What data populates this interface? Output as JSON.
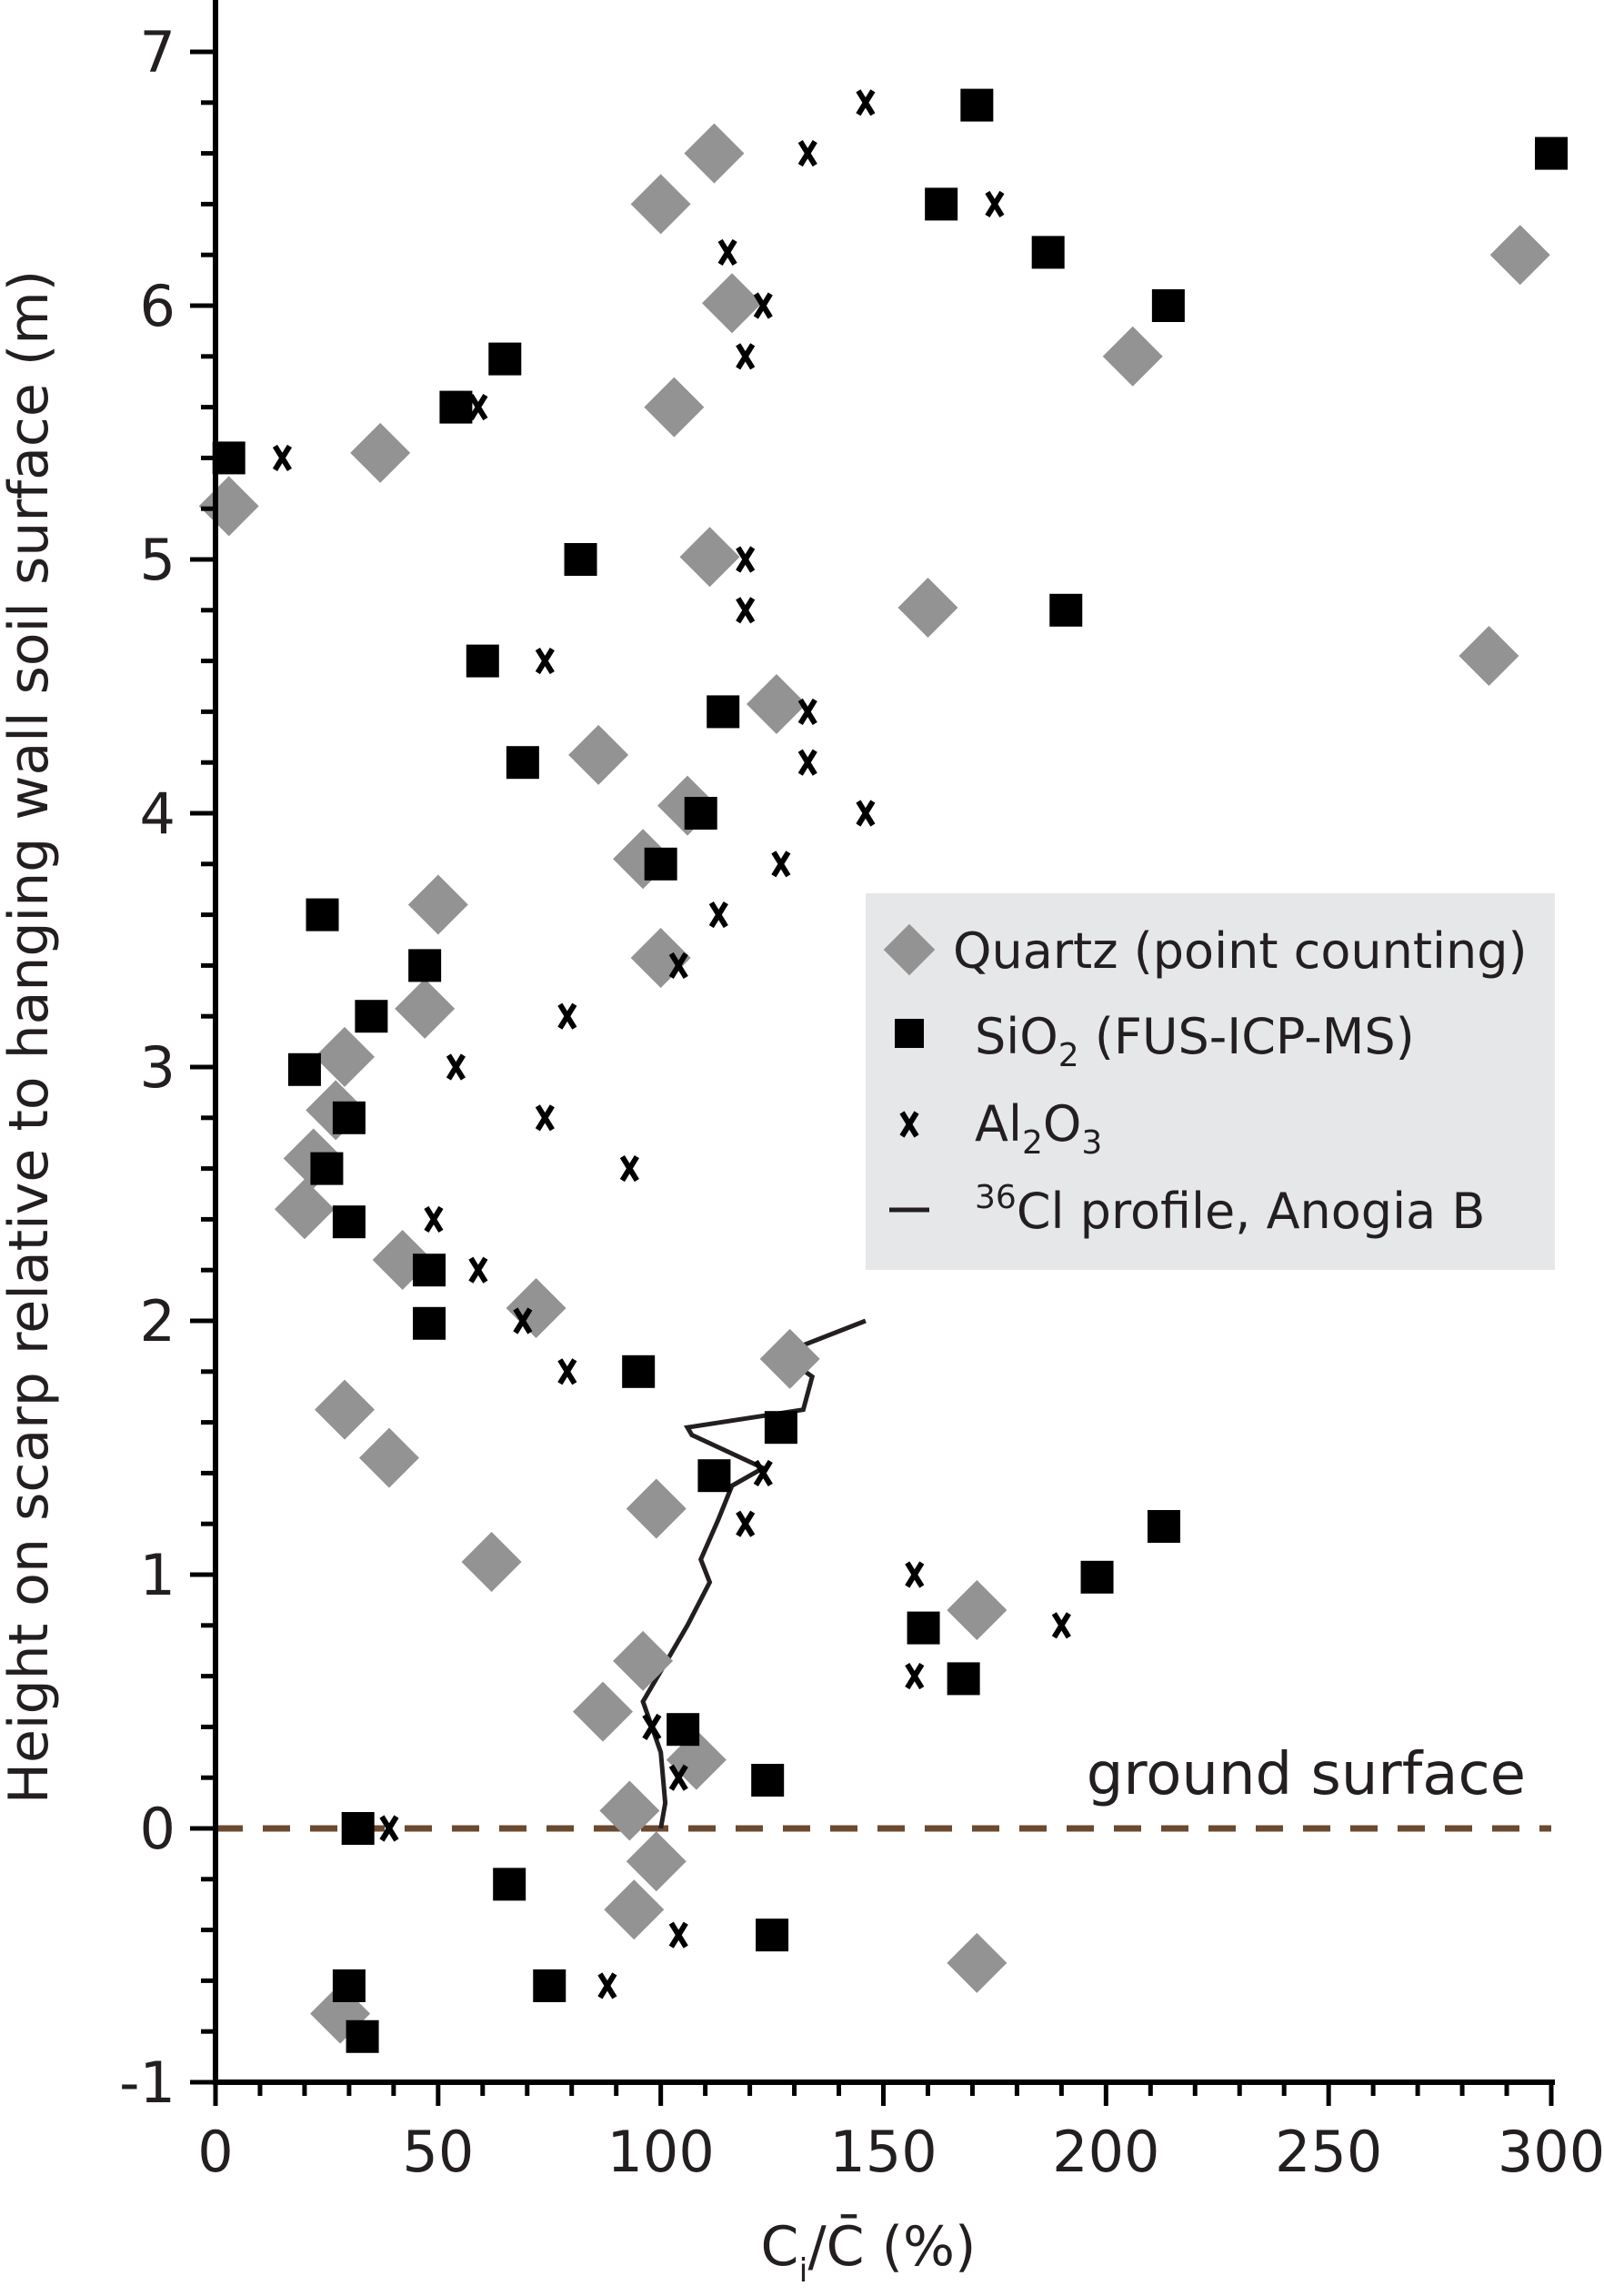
{
  "chart_data": {
    "type": "scatter",
    "xlabel_main": "C",
    "xlabel_sub": "i",
    "xlabel_rest": "/C̄ (%)",
    "ylabel": "Height on scarp relative to hanging wall soil surface (m)",
    "xlim": [
      0,
      300
    ],
    "ylim": [
      -1,
      7.25
    ],
    "x_ticks": [
      "0",
      "50",
      "100",
      "150",
      "200",
      "250",
      "300"
    ],
    "y_ticks": [
      "-1",
      "0",
      "1",
      "2",
      "3",
      "4",
      "5",
      "6",
      "7"
    ],
    "grid": false,
    "legend_position": "center-right",
    "ground_surface": {
      "y": 0,
      "label": "ground surface",
      "color": "#6b4a2f"
    },
    "series": [
      {
        "name": "Quartz (point counting)",
        "marker": "diamond",
        "color": "#939393",
        "points": [
          [
            3,
            5.21
          ],
          [
            37,
            5.42
          ],
          [
            100,
            6.4
          ],
          [
            112,
            6.6
          ],
          [
            116,
            6.01
          ],
          [
            103,
            5.6
          ],
          [
            206,
            5.8
          ],
          [
            293,
            6.2
          ],
          [
            111,
            5.01
          ],
          [
            160,
            4.81
          ],
          [
            286,
            4.62
          ],
          [
            126,
            4.43
          ],
          [
            86,
            4.23
          ],
          [
            106,
            4.03
          ],
          [
            96,
            3.82
          ],
          [
            50,
            3.64
          ],
          [
            100,
            3.43
          ],
          [
            47,
            3.23
          ],
          [
            29,
            3.04
          ],
          [
            27,
            2.83
          ],
          [
            22,
            2.64
          ],
          [
            20,
            2.44
          ],
          [
            42,
            2.24
          ],
          [
            72,
            2.05
          ],
          [
            129,
            1.85
          ],
          [
            29,
            1.65
          ],
          [
            39,
            1.46
          ],
          [
            99,
            1.26
          ],
          [
            62,
            1.05
          ],
          [
            171,
            0.86
          ],
          [
            96,
            0.66
          ],
          [
            87,
            0.46
          ],
          [
            108,
            0.27
          ],
          [
            93,
            0.07
          ],
          [
            99,
            -0.13
          ],
          [
            94,
            -0.32
          ],
          [
            171,
            -0.53
          ],
          [
            28,
            -0.73
          ]
        ]
      },
      {
        "name": "SiO",
        "name_sub": "2",
        "name_rest": " (FUS-ICP-MS)",
        "marker": "square",
        "color": "#000000",
        "points": [
          [
            3,
            5.4
          ],
          [
            54,
            5.6
          ],
          [
            65,
            5.79
          ],
          [
            171,
            6.79
          ],
          [
            300,
            6.6
          ],
          [
            163,
            6.4
          ],
          [
            187,
            6.21
          ],
          [
            214,
            6.0
          ],
          [
            82,
            5.0
          ],
          [
            191,
            4.8
          ],
          [
            60,
            4.6
          ],
          [
            114,
            4.4
          ],
          [
            69,
            4.2
          ],
          [
            109,
            4.0
          ],
          [
            100,
            3.8
          ],
          [
            24,
            3.6
          ],
          [
            47,
            3.4
          ],
          [
            35,
            3.2
          ],
          [
            20,
            2.99
          ],
          [
            30,
            2.8
          ],
          [
            25,
            2.6
          ],
          [
            30,
            2.39
          ],
          [
            48,
            2.2
          ],
          [
            48,
            1.99
          ],
          [
            95,
            1.8
          ],
          [
            127,
            1.58
          ],
          [
            112,
            1.39
          ],
          [
            213,
            1.19
          ],
          [
            198,
            0.99
          ],
          [
            159,
            0.79
          ],
          [
            168,
            0.59
          ],
          [
            105,
            0.39
          ],
          [
            124,
            0.19
          ],
          [
            32,
            0.0
          ],
          [
            66,
            -0.22
          ],
          [
            125,
            -0.42
          ],
          [
            30,
            -0.62
          ],
          [
            75,
            -0.62
          ],
          [
            33,
            -0.82
          ]
        ]
      },
      {
        "name": "Al",
        "name_sub": "2",
        "name_mid": "O",
        "name_sub2": "3",
        "marker": "x",
        "color": "#000000",
        "points": [
          [
            15,
            5.4
          ],
          [
            59,
            5.6
          ],
          [
            146,
            6.8
          ],
          [
            133,
            6.6
          ],
          [
            175,
            6.4
          ],
          [
            115,
            6.21
          ],
          [
            123,
            6.0
          ],
          [
            119,
            5.8
          ],
          [
            119,
            5.0
          ],
          [
            119,
            4.8
          ],
          [
            74,
            4.6
          ],
          [
            133,
            4.4
          ],
          [
            133,
            4.2
          ],
          [
            146,
            4.0
          ],
          [
            127,
            3.8
          ],
          [
            113,
            3.6
          ],
          [
            104,
            3.4
          ],
          [
            79,
            3.2
          ],
          [
            54,
            3.0
          ],
          [
            74,
            2.8
          ],
          [
            93,
            2.6
          ],
          [
            49,
            2.4
          ],
          [
            59,
            2.2
          ],
          [
            69,
            2.0
          ],
          [
            79,
            1.8
          ],
          [
            123,
            1.4
          ],
          [
            119,
            1.2
          ],
          [
            157,
            1.0
          ],
          [
            190,
            0.8
          ],
          [
            157,
            0.6
          ],
          [
            98,
            0.4
          ],
          [
            104,
            0.2
          ],
          [
            39,
            0.0
          ],
          [
            104,
            -0.42
          ],
          [
            74,
            -0.62
          ],
          [
            88,
            -0.62
          ]
        ]
      },
      {
        "name_sup": "36",
        "name": "Cl profile, Anogia B",
        "marker": "line",
        "color": "#231f20",
        "points": [
          [
            100,
            0.0
          ],
          [
            101,
            0.1
          ],
          [
            100,
            0.3
          ],
          [
            96,
            0.5
          ],
          [
            101,
            0.65
          ],
          [
            106,
            0.8
          ],
          [
            111,
            0.97
          ],
          [
            109,
            1.06
          ],
          [
            113,
            1.22
          ],
          [
            116,
            1.35
          ],
          [
            123,
            1.42
          ],
          [
            107,
            1.55
          ],
          [
            106,
            1.58
          ],
          [
            132,
            1.65
          ],
          [
            134,
            1.78
          ],
          [
            127,
            1.87
          ],
          [
            146,
            2.0
          ]
        ]
      }
    ]
  }
}
